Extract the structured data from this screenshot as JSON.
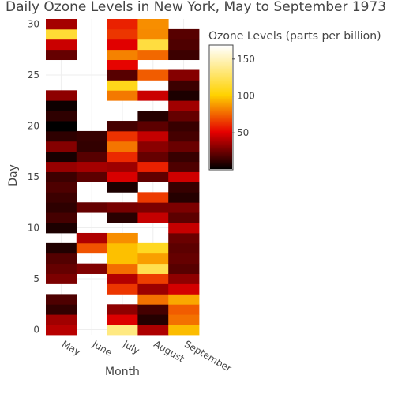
{
  "chart_data": {
    "type": "heatmap",
    "title": "Daily Ozone Levels in New York, May to September 1973",
    "xlabel": "Month",
    "ylabel": "Day",
    "x_categories": [
      "May",
      "June",
      "July",
      "August",
      "September"
    ],
    "y_ticks": [
      0,
      5,
      10,
      15,
      20,
      25,
      30
    ],
    "y_range": [
      -0.5,
      30.5
    ],
    "colorbar": {
      "title": "Ozone Levels (parts per billion)",
      "ticks": [
        50,
        100,
        150
      ],
      "range": [
        1,
        168
      ],
      "colorscale": "Hot"
    },
    "z": [
      [
        41,
        36,
        12,
        18,
        null,
        28,
        23,
        19,
        8,
        null,
        7,
        16,
        11,
        14,
        18,
        14,
        34,
        6,
        30,
        11,
        1,
        11,
        4,
        32,
        null,
        null,
        null,
        23,
        45,
        115,
        37
      ],
      [
        null,
        null,
        null,
        null,
        null,
        null,
        29,
        null,
        71,
        39,
        null,
        null,
        23,
        null,
        null,
        21,
        37,
        20,
        12,
        13,
        null,
        null,
        null,
        null,
        null,
        null,
        null,
        null,
        null,
        null,
        null
      ],
      [
        135,
        49,
        32,
        null,
        64,
        40,
        77,
        97,
        97,
        85,
        null,
        10,
        27,
        null,
        7,
        48,
        35,
        61,
        79,
        63,
        16,
        null,
        null,
        80,
        108,
        20,
        52,
        82,
        50,
        64,
        59
      ],
      [
        39,
        9,
        16,
        78,
        35,
        66,
        122,
        89,
        110,
        null,
        null,
        44,
        28,
        65,
        null,
        22,
        59,
        23,
        31,
        44,
        21,
        9,
        null,
        45,
        168,
        73,
        null,
        76,
        118,
        84,
        85
      ],
      [
        96,
        78,
        73,
        91,
        47,
        32,
        20,
        23,
        21,
        24,
        44,
        21,
        28,
        9,
        13,
        46,
        18,
        13,
        24,
        16,
        13,
        23,
        36,
        7,
        14,
        30,
        null,
        14,
        18,
        20,
        null
      ]
    ]
  }
}
